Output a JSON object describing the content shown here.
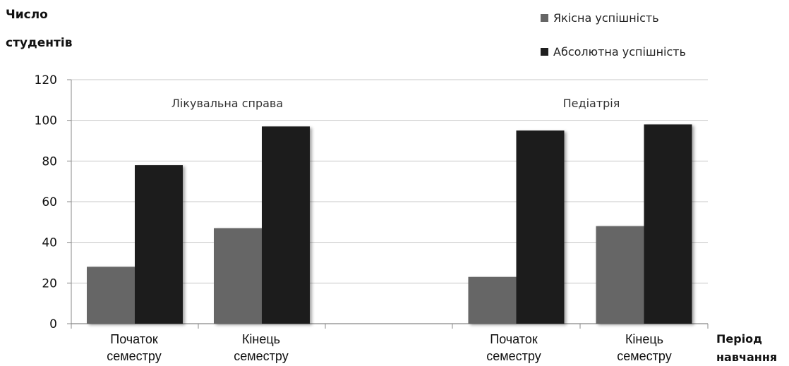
{
  "chart_data": {
    "type": "bar",
    "ylabel_lines": [
      "Число",
      "студентів"
    ],
    "xlabel_lines": [
      "Період",
      "навчання"
    ],
    "ylim": [
      0,
      120
    ],
    "yticks": [
      0,
      20,
      40,
      60,
      80,
      100,
      120
    ],
    "grid": true,
    "legend_position": "top-right",
    "groups": [
      {
        "label": "Лікувальна справа",
        "categories": [
          [
            "Початок",
            "семестру"
          ],
          [
            "Кінець",
            "семестру"
          ]
        ]
      },
      {
        "label": "Педіатрія",
        "categories": [
          [
            "Початок",
            "семестру"
          ],
          [
            "Кінець",
            "семестру"
          ]
        ]
      }
    ],
    "series": [
      {
        "name": "Якісна успішність",
        "color": "#666666",
        "values": [
          28,
          47,
          23,
          48
        ]
      },
      {
        "name": "Абсолютна успішність",
        "color": "#1f1f1f",
        "values": [
          78,
          97,
          95,
          98
        ]
      }
    ]
  }
}
